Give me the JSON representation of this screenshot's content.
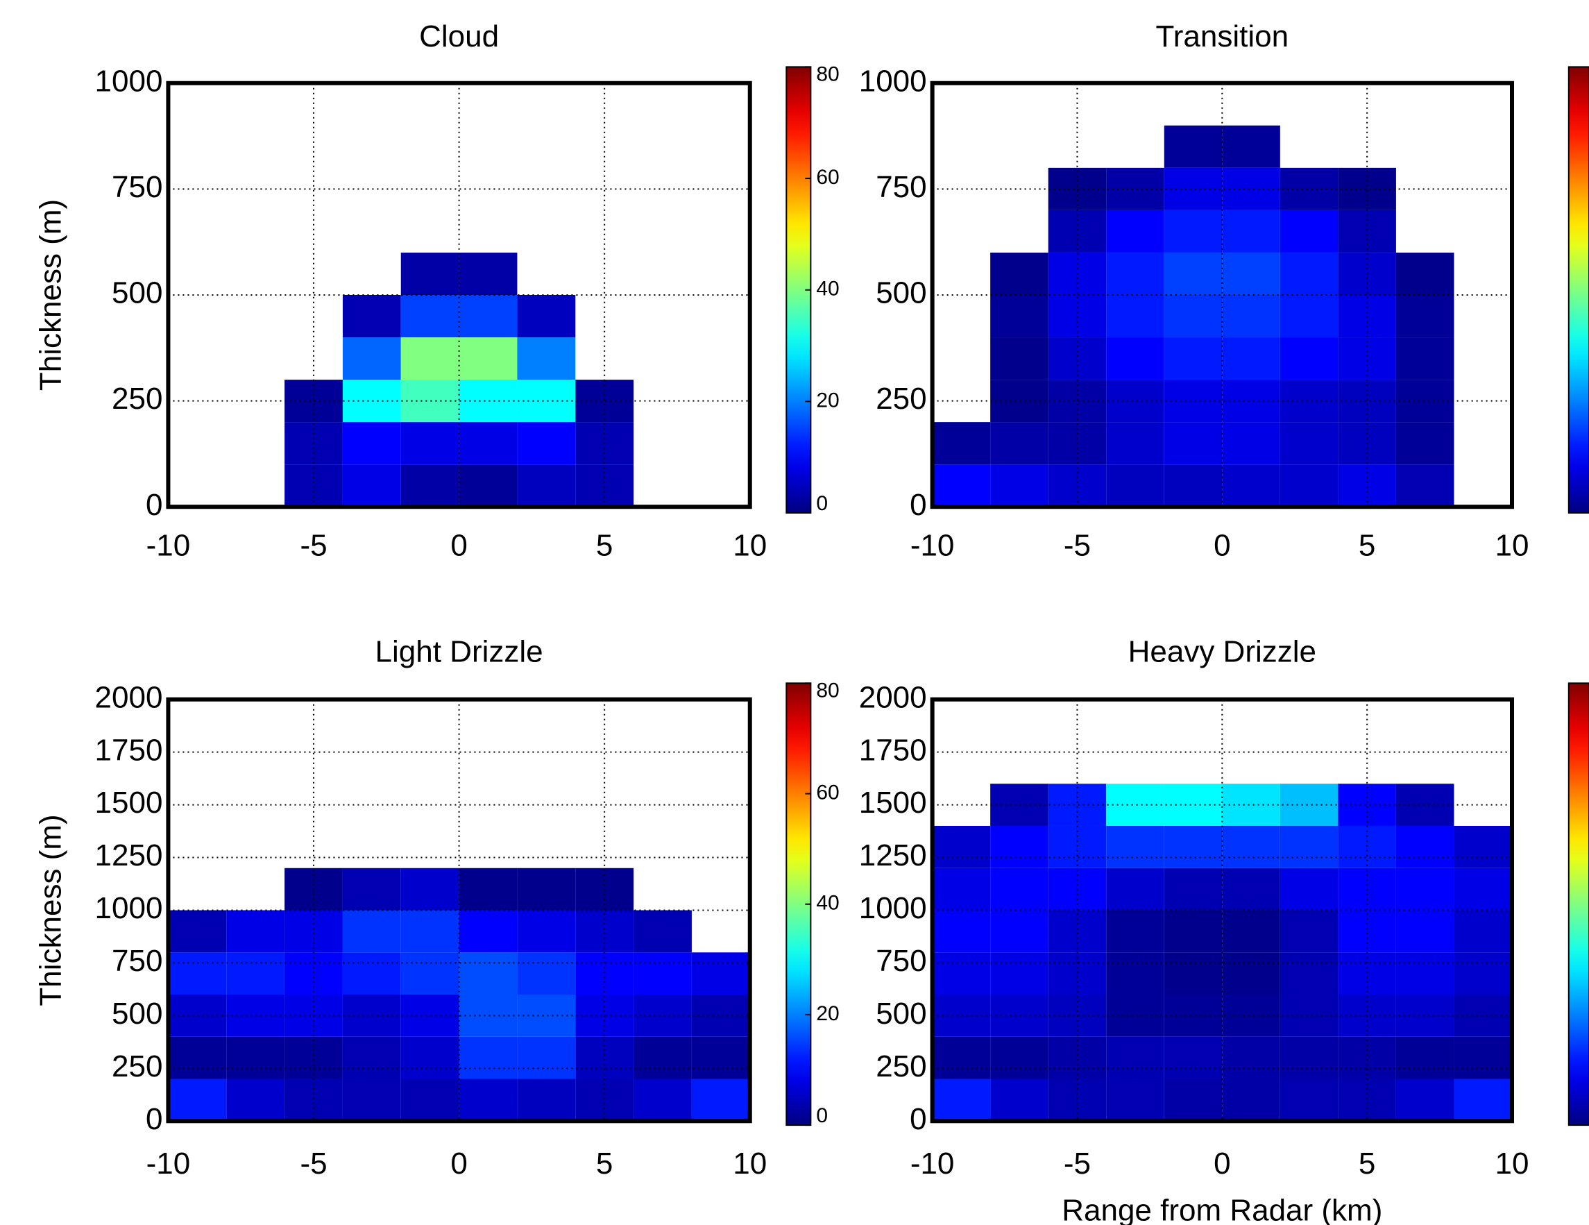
{
  "chart_data": [
    {
      "type": "heatmap",
      "title": "Cloud",
      "ylabel": "Thickness (m)",
      "xlim": [
        -10,
        10
      ],
      "xticks": [
        -10,
        -5,
        0,
        5,
        10
      ],
      "ylim": [
        0,
        1000
      ],
      "yticks": [
        0,
        250,
        500,
        750,
        1000
      ],
      "grid": true,
      "colormap": "jet",
      "clim": [
        0,
        80
      ],
      "cticks": [
        0,
        20,
        40,
        60,
        80
      ],
      "xbins": [
        -10,
        -8,
        -6,
        -4,
        -2,
        0,
        2,
        4,
        6,
        8,
        10
      ],
      "ybins": [
        0,
        100,
        200,
        300,
        400,
        500,
        600,
        700,
        800,
        900,
        1000
      ],
      "values": [
        [
          0,
          0,
          4,
          8,
          3,
          2,
          5,
          4,
          0,
          0
        ],
        [
          0,
          0,
          4,
          10,
          8,
          8,
          10,
          4,
          0,
          0
        ],
        [
          0,
          0,
          2,
          30,
          35,
          30,
          30,
          2,
          0,
          0
        ],
        [
          0,
          0,
          0,
          18,
          40,
          40,
          20,
          0,
          0,
          0
        ],
        [
          0,
          0,
          0,
          4,
          15,
          15,
          5,
          0,
          0,
          0
        ],
        [
          0,
          0,
          0,
          0,
          3,
          3,
          0,
          0,
          0,
          0
        ],
        [
          0,
          0,
          0,
          0,
          0,
          0,
          0,
          0,
          0,
          0
        ],
        [
          0,
          0,
          0,
          0,
          0,
          0,
          0,
          0,
          0,
          0
        ],
        [
          0,
          0,
          0,
          0,
          0,
          0,
          0,
          0,
          0,
          0
        ],
        [
          0,
          0,
          0,
          0,
          0,
          0,
          0,
          0,
          0,
          0
        ]
      ]
    },
    {
      "type": "heatmap",
      "title": "Transition",
      "xlim": [
        -10,
        10
      ],
      "xticks": [
        -10,
        -5,
        0,
        5,
        10
      ],
      "ylim": [
        0,
        1000
      ],
      "yticks": [
        0,
        250,
        500,
        750,
        1000
      ],
      "grid": true,
      "colormap": "jet",
      "clim": [
        0,
        80
      ],
      "xbins": [
        -10,
        -8,
        -6,
        -4,
        -2,
        0,
        2,
        4,
        6,
        8,
        10
      ],
      "ybins": [
        0,
        100,
        200,
        300,
        400,
        500,
        600,
        700,
        800,
        900,
        1000
      ],
      "values": [
        [
          10,
          8,
          6,
          5,
          5,
          6,
          6,
          8,
          4,
          0
        ],
        [
          2,
          3,
          3,
          6,
          8,
          8,
          6,
          5,
          2,
          0
        ],
        [
          0,
          1,
          3,
          6,
          8,
          8,
          6,
          5,
          2,
          0
        ],
        [
          0,
          1,
          6,
          10,
          12,
          12,
          10,
          8,
          2,
          0
        ],
        [
          0,
          2,
          8,
          12,
          14,
          14,
          12,
          8,
          2,
          0
        ],
        [
          0,
          1,
          8,
          12,
          15,
          15,
          12,
          6,
          1,
          0
        ],
        [
          0,
          0,
          4,
          10,
          12,
          12,
          10,
          4,
          0,
          0
        ],
        [
          0,
          0,
          1,
          3,
          8,
          8,
          3,
          1,
          0,
          0
        ],
        [
          0,
          0,
          0,
          0,
          2,
          2,
          0,
          0,
          0,
          0
        ],
        [
          0,
          0,
          0,
          0,
          0,
          0,
          0,
          0,
          0,
          0
        ]
      ]
    },
    {
      "type": "heatmap",
      "title": "Light Drizzle",
      "ylabel": "Thickness (m)",
      "xlim": [
        -10,
        10
      ],
      "xticks": [
        -10,
        -5,
        0,
        5,
        10
      ],
      "ylim": [
        0,
        2000
      ],
      "yticks": [
        0,
        250,
        500,
        750,
        1000,
        1250,
        1500,
        1750,
        2000
      ],
      "grid": true,
      "colormap": "jet",
      "clim": [
        0,
        80
      ],
      "cticks": [
        0,
        20,
        40,
        60,
        80
      ],
      "xbins": [
        -10,
        -8,
        -6,
        -4,
        -2,
        0,
        2,
        4,
        6,
        8,
        10
      ],
      "ybins": [
        0,
        200,
        400,
        600,
        800,
        1000,
        1200,
        1400,
        1600,
        1800,
        2000
      ],
      "values": [
        [
          12,
          6,
          4,
          4,
          4,
          6,
          5,
          4,
          6,
          12
        ],
        [
          2,
          2,
          2,
          4,
          6,
          14,
          14,
          5,
          2,
          2
        ],
        [
          6,
          8,
          8,
          6,
          8,
          16,
          16,
          8,
          6,
          4
        ],
        [
          12,
          12,
          10,
          12,
          14,
          16,
          14,
          10,
          10,
          8
        ],
        [
          4,
          8,
          8,
          14,
          14,
          10,
          8,
          6,
          4,
          0
        ],
        [
          0,
          0,
          1,
          4,
          6,
          1,
          1,
          1,
          0,
          0
        ],
        [
          0,
          0,
          0,
          0,
          0,
          0,
          0,
          0,
          0,
          0
        ],
        [
          0,
          0,
          0,
          0,
          0,
          0,
          0,
          0,
          0,
          0
        ],
        [
          0,
          0,
          0,
          0,
          0,
          0,
          0,
          0,
          0,
          0
        ],
        [
          0,
          0,
          0,
          0,
          0,
          0,
          0,
          0,
          0,
          0
        ]
      ]
    },
    {
      "type": "heatmap",
      "title": "Heavy Drizzle",
      "xlabel": "Range from Radar (km)",
      "xlim": [
        -10,
        10
      ],
      "xticks": [
        -10,
        -5,
        0,
        5,
        10
      ],
      "ylim": [
        0,
        2000
      ],
      "yticks": [
        0,
        250,
        500,
        750,
        1000,
        1250,
        1500,
        1750,
        2000
      ],
      "grid": true,
      "colormap": "jet",
      "clim": [
        0,
        80
      ],
      "xbins": [
        -10,
        -8,
        -6,
        -4,
        -2,
        0,
        2,
        4,
        6,
        8,
        10
      ],
      "ybins": [
        0,
        200,
        400,
        600,
        800,
        1000,
        1200,
        1400,
        1600,
        1800,
        2000
      ],
      "values": [
        [
          12,
          6,
          4,
          4,
          3,
          3,
          4,
          4,
          6,
          12
        ],
        [
          2,
          2,
          3,
          4,
          4,
          3,
          3,
          3,
          2,
          2
        ],
        [
          6,
          6,
          5,
          2,
          2,
          2,
          4,
          6,
          6,
          4
        ],
        [
          8,
          8,
          6,
          2,
          1,
          1,
          4,
          8,
          8,
          6
        ],
        [
          10,
          10,
          6,
          2,
          1,
          1,
          4,
          10,
          10,
          6
        ],
        [
          8,
          10,
          10,
          6,
          4,
          4,
          8,
          10,
          10,
          8
        ],
        [
          6,
          10,
          12,
          14,
          14,
          14,
          14,
          12,
          10,
          6
        ],
        [
          0,
          4,
          12,
          30,
          30,
          28,
          25,
          10,
          4,
          0
        ],
        [
          0,
          0,
          0,
          0,
          0,
          0,
          0,
          0,
          0,
          0
        ],
        [
          0,
          0,
          0,
          0,
          0,
          0,
          0,
          0,
          0,
          0
        ]
      ]
    }
  ]
}
